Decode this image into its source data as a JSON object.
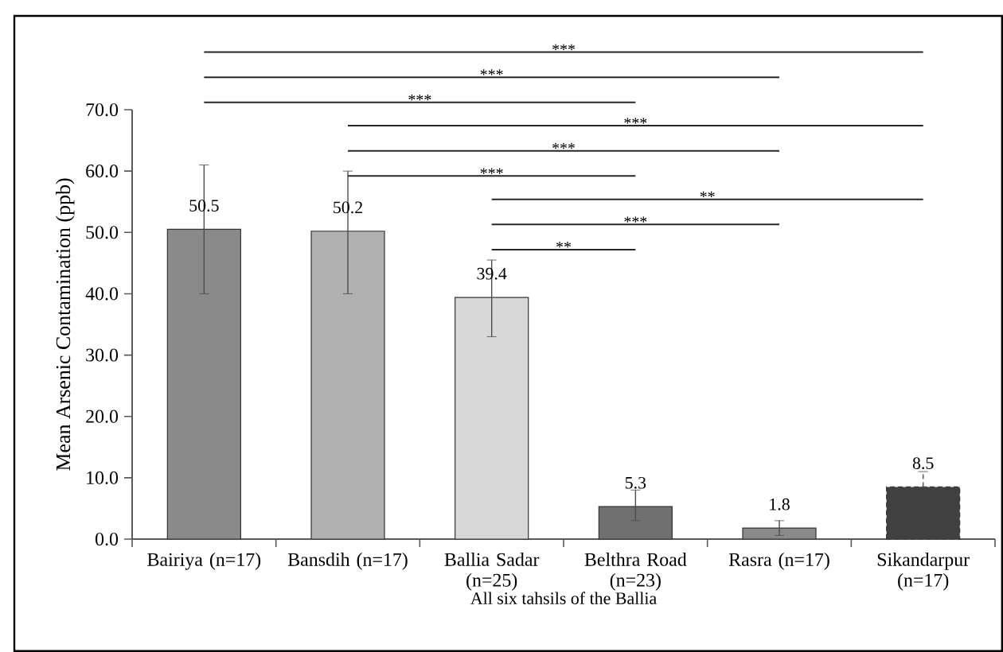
{
  "chart_data": {
    "type": "bar",
    "xlabel": "All six tahsils of the Ballia",
    "ylabel": "Mean Arsenic Contamination (ppb)",
    "categories": [
      "Bairiya (n=17)",
      "Bansdih (n=17)",
      "Ballia Sadar (n=25)",
      "Belthra Road (n=23)",
      "Rasra (n=17)",
      "Sikandarpur (n=17)"
    ],
    "values": [
      50.5,
      50.2,
      39.4,
      5.3,
      1.8,
      8.5
    ],
    "colors": [
      "#8a8a8a",
      "#b0b0b0",
      "#d8d8d8",
      "#707070",
      "#8a8a8a",
      "#404040"
    ],
    "errors": [
      [
        40,
        61
      ],
      [
        40,
        60
      ],
      [
        33,
        45.5
      ],
      [
        3,
        8
      ],
      [
        0.6,
        3
      ],
      [
        8.5,
        11
      ]
    ],
    "data_labels": true,
    "ylim": [
      0,
      70
    ],
    "yticks": [
      {
        "value": 0,
        "label": "0.0"
      },
      {
        "value": 10,
        "label": "10.0"
      },
      {
        "value": 20,
        "label": "20.0"
      },
      {
        "value": 30,
        "label": "30.0"
      },
      {
        "value": 40,
        "label": "40.0"
      },
      {
        "value": 50,
        "label": "50.0"
      },
      {
        "value": 60,
        "label": "60.0"
      },
      {
        "value": 70,
        "label": "70.0"
      }
    ],
    "annotations": [
      "***",
      "***",
      "***",
      "***",
      "***",
      "***",
      "**",
      "***",
      "**"
    ]
  }
}
